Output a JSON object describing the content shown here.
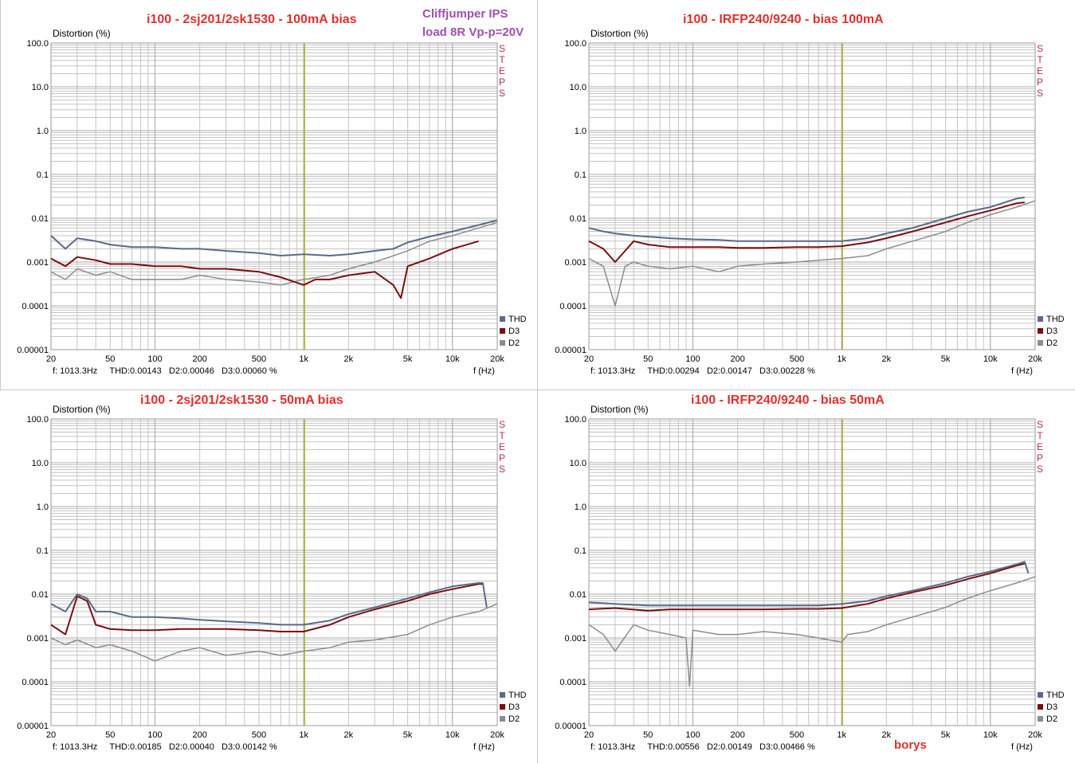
{
  "overlay": {
    "note_line1": "Cliffjumper IPS",
    "note_line2": "load 8R Vp-p=20V",
    "signature": "borys"
  },
  "colors": {
    "thd": "#5a6a8a",
    "d3": "#7a0e0e",
    "d2": "#8c8c8c",
    "marker": "#b8b830",
    "title": "#e0302c",
    "note": "#a04fb0"
  },
  "axis": {
    "y_label": "Distortion (%)",
    "x_unit": "f (Hz)",
    "steps_glyphs": [
      "S",
      "T",
      "E",
      "P",
      "S"
    ],
    "y_ticks": [
      {
        "v": 100,
        "label": "100.0"
      },
      {
        "v": 10,
        "label": "10.0"
      },
      {
        "v": 1,
        "label": "1.0"
      },
      {
        "v": 0.1,
        "label": "0.1"
      },
      {
        "v": 0.01,
        "label": "0.01"
      },
      {
        "v": 0.001,
        "label": "0.001"
      },
      {
        "v": 0.0001,
        "label": "0.0001"
      },
      {
        "v": 1e-05,
        "label": "0.00001"
      }
    ],
    "x_ticks": [
      {
        "v": 20,
        "label": "20"
      },
      {
        "v": 50,
        "label": "50"
      },
      {
        "v": 100,
        "label": "100"
      },
      {
        "v": 200,
        "label": "200"
      },
      {
        "v": 500,
        "label": "500"
      },
      {
        "v": 1000,
        "label": "1k"
      },
      {
        "v": 2000,
        "label": "2k"
      },
      {
        "v": 5000,
        "label": "5k"
      },
      {
        "v": 10000,
        "label": "10k"
      },
      {
        "v": 20000,
        "label": "20k"
      }
    ]
  },
  "legend": [
    "THD",
    "D3",
    "D2"
  ],
  "chart_data": [
    {
      "type": "line",
      "title": "i100 - 2sj201/2sk1530 - 100mA bias",
      "xlim": [
        20,
        20000
      ],
      "ylim": [
        1e-05,
        100
      ],
      "xscale": "log",
      "yscale": "log",
      "marker_x": 1013.3,
      "status": {
        "f": "f: 1013.3Hz",
        "thd": "THD:0.00143",
        "d2": "D2:0.00046",
        "d3": "D3:0.00060 %"
      },
      "series": [
        {
          "name": "THD",
          "color": "#5a6a8a",
          "x": [
            20,
            25,
            30,
            40,
            50,
            70,
            100,
            150,
            200,
            300,
            500,
            700,
            1000,
            1500,
            2000,
            3000,
            4000,
            5000,
            7000,
            10000,
            15000,
            20000
          ],
          "y": [
            0.004,
            0.002,
            0.0035,
            0.003,
            0.0025,
            0.0022,
            0.0022,
            0.002,
            0.002,
            0.0018,
            0.0016,
            0.0014,
            0.0015,
            0.0014,
            0.0015,
            0.0018,
            0.002,
            0.0028,
            0.0038,
            0.005,
            0.007,
            0.009
          ]
        },
        {
          "name": "D3",
          "color": "#7a0e0e",
          "x": [
            20,
            25,
            30,
            40,
            50,
            70,
            100,
            150,
            200,
            300,
            500,
            700,
            1000,
            1200,
            1500,
            2000,
            3000,
            4000,
            4500,
            5000,
            7000,
            10000,
            15000
          ],
          "y": [
            0.0012,
            0.0008,
            0.0013,
            0.0011,
            0.0009,
            0.0009,
            0.0008,
            0.0008,
            0.0007,
            0.0007,
            0.0006,
            0.00045,
            0.0003,
            0.0004,
            0.0004,
            0.0005,
            0.0006,
            0.0003,
            0.00015,
            0.0008,
            0.0012,
            0.002,
            0.003
          ]
        },
        {
          "name": "D2",
          "color": "#8c8c8c",
          "x": [
            20,
            25,
            30,
            40,
            50,
            70,
            100,
            150,
            200,
            300,
            500,
            700,
            1000,
            1500,
            2000,
            3000,
            5000,
            7000,
            10000,
            15000,
            20000
          ],
          "y": [
            0.0006,
            0.0004,
            0.0007,
            0.0005,
            0.0006,
            0.0004,
            0.0004,
            0.0004,
            0.0005,
            0.0004,
            0.00035,
            0.0003,
            0.0004,
            0.0005,
            0.0007,
            0.001,
            0.0018,
            0.003,
            0.004,
            0.006,
            0.008
          ]
        }
      ]
    },
    {
      "type": "line",
      "title": "i100 - IRFP240/9240 - bias 100mA",
      "xlim": [
        20,
        20000
      ],
      "ylim": [
        1e-05,
        100
      ],
      "xscale": "log",
      "yscale": "log",
      "marker_x": 1013.3,
      "status": {
        "f": "f: 1013.3Hz",
        "thd": "THD:0.00294",
        "d2": "D2:0.00147",
        "d3": "D3:0.00228 %"
      },
      "series": [
        {
          "name": "THD",
          "color": "#5a6a8a",
          "x": [
            20,
            25,
            30,
            40,
            50,
            70,
            100,
            150,
            200,
            300,
            500,
            700,
            1000,
            1500,
            2000,
            3000,
            5000,
            7000,
            10000,
            15000,
            17000
          ],
          "y": [
            0.006,
            0.005,
            0.0045,
            0.004,
            0.0038,
            0.0035,
            0.0033,
            0.0032,
            0.003,
            0.003,
            0.003,
            0.003,
            0.003,
            0.0035,
            0.0045,
            0.006,
            0.01,
            0.014,
            0.018,
            0.028,
            0.03
          ]
        },
        {
          "name": "D3",
          "color": "#7a0e0e",
          "x": [
            20,
            25,
            30,
            35,
            40,
            50,
            70,
            100,
            150,
            200,
            300,
            500,
            700,
            1000,
            1500,
            2000,
            3000,
            5000,
            7000,
            10000,
            15000,
            17000
          ],
          "y": [
            0.003,
            0.002,
            0.001,
            0.0018,
            0.003,
            0.0025,
            0.0022,
            0.0022,
            0.0022,
            0.0021,
            0.0021,
            0.0022,
            0.0022,
            0.0023,
            0.0028,
            0.0035,
            0.005,
            0.008,
            0.011,
            0.015,
            0.022,
            0.023
          ]
        },
        {
          "name": "D2",
          "color": "#8c8c8c",
          "x": [
            20,
            25,
            30,
            35,
            40,
            50,
            70,
            100,
            150,
            200,
            300,
            500,
            700,
            1000,
            1500,
            2000,
            3000,
            5000,
            7000,
            10000,
            15000,
            20000
          ],
          "y": [
            0.0012,
            0.0008,
            0.0001,
            0.0008,
            0.001,
            0.0008,
            0.0007,
            0.0008,
            0.0006,
            0.0008,
            0.0009,
            0.001,
            0.0011,
            0.0012,
            0.0014,
            0.002,
            0.003,
            0.005,
            0.008,
            0.012,
            0.018,
            0.025
          ]
        }
      ]
    },
    {
      "type": "line",
      "title": "i100 - 2sj201/2sk1530 - 50mA bias",
      "xlim": [
        20,
        20000
      ],
      "ylim": [
        1e-05,
        100
      ],
      "xscale": "log",
      "yscale": "log",
      "marker_x": 1013.3,
      "status": {
        "f": "f: 1013.3Hz",
        "thd": "THD:0.00185",
        "d2": "D2:0.00040",
        "d3": "D3:0.00142 %"
      },
      "series": [
        {
          "name": "THD",
          "color": "#5a6a8a",
          "x": [
            20,
            25,
            30,
            35,
            40,
            50,
            70,
            100,
            150,
            200,
            300,
            500,
            700,
            1000,
            1500,
            2000,
            3000,
            5000,
            7000,
            10000,
            15000,
            16000,
            17000
          ],
          "y": [
            0.006,
            0.004,
            0.01,
            0.008,
            0.004,
            0.004,
            0.003,
            0.003,
            0.0028,
            0.0026,
            0.0024,
            0.0022,
            0.002,
            0.002,
            0.0025,
            0.0035,
            0.005,
            0.008,
            0.011,
            0.015,
            0.018,
            0.018,
            0.005
          ]
        },
        {
          "name": "D3",
          "color": "#7a0e0e",
          "x": [
            20,
            25,
            30,
            35,
            40,
            50,
            70,
            100,
            150,
            200,
            300,
            500,
            700,
            1000,
            1500,
            2000,
            3000,
            5000,
            7000,
            10000,
            15000,
            16000
          ],
          "y": [
            0.002,
            0.0012,
            0.009,
            0.007,
            0.002,
            0.0016,
            0.0015,
            0.0015,
            0.0016,
            0.0016,
            0.0016,
            0.0015,
            0.0014,
            0.0014,
            0.002,
            0.003,
            0.0045,
            0.007,
            0.01,
            0.013,
            0.017,
            0.017
          ]
        },
        {
          "name": "D2",
          "color": "#8c8c8c",
          "x": [
            20,
            25,
            30,
            40,
            50,
            70,
            100,
            150,
            200,
            300,
            500,
            700,
            1000,
            1500,
            2000,
            3000,
            5000,
            7000,
            10000,
            15000,
            20000
          ],
          "y": [
            0.001,
            0.0007,
            0.0009,
            0.0006,
            0.0007,
            0.0005,
            0.0003,
            0.0005,
            0.0006,
            0.0004,
            0.0005,
            0.0004,
            0.0005,
            0.0006,
            0.0008,
            0.0009,
            0.0012,
            0.002,
            0.003,
            0.004,
            0.006
          ]
        }
      ]
    },
    {
      "type": "line",
      "title": "i100 - IRFP240/9240 - bias 50mA",
      "xlim": [
        20,
        20000
      ],
      "ylim": [
        1e-05,
        100
      ],
      "xscale": "log",
      "yscale": "log",
      "marker_x": 1013.3,
      "status": {
        "f": "f: 1013.3Hz",
        "thd": "THD:0.00556",
        "d2": "D2:0.00149",
        "d3": "D3:0.00466 %"
      },
      "series": [
        {
          "name": "THD",
          "color": "#5a6a8a",
          "x": [
            20,
            30,
            50,
            70,
            100,
            150,
            200,
            300,
            500,
            700,
            1000,
            1500,
            2000,
            3000,
            5000,
            7000,
            10000,
            15000,
            17000,
            18000
          ],
          "y": [
            0.0065,
            0.006,
            0.0055,
            0.0055,
            0.0055,
            0.0055,
            0.0055,
            0.0055,
            0.0055,
            0.0055,
            0.006,
            0.007,
            0.009,
            0.012,
            0.018,
            0.025,
            0.033,
            0.048,
            0.055,
            0.03
          ]
        },
        {
          "name": "D3",
          "color": "#7a0e0e",
          "x": [
            20,
            30,
            50,
            70,
            100,
            150,
            200,
            300,
            500,
            700,
            1000,
            1500,
            2000,
            3000,
            5000,
            7000,
            10000,
            15000,
            17000
          ],
          "y": [
            0.0045,
            0.0048,
            0.0042,
            0.0045,
            0.0045,
            0.0045,
            0.0045,
            0.0045,
            0.0046,
            0.0046,
            0.0048,
            0.006,
            0.008,
            0.011,
            0.016,
            0.022,
            0.03,
            0.045,
            0.05
          ]
        },
        {
          "name": "D2",
          "color": "#8c8c8c",
          "x": [
            20,
            25,
            30,
            40,
            50,
            70,
            90,
            95,
            100,
            150,
            200,
            300,
            500,
            700,
            1000,
            1100,
            1500,
            2000,
            3000,
            5000,
            7000,
            10000,
            15000,
            20000
          ],
          "y": [
            0.002,
            0.0012,
            0.0005,
            0.002,
            0.0015,
            0.0012,
            0.001,
            8e-05,
            0.0015,
            0.0012,
            0.0012,
            0.0014,
            0.0012,
            0.001,
            0.0008,
            0.0012,
            0.0014,
            0.002,
            0.003,
            0.005,
            0.008,
            0.012,
            0.018,
            0.025
          ]
        }
      ]
    }
  ]
}
